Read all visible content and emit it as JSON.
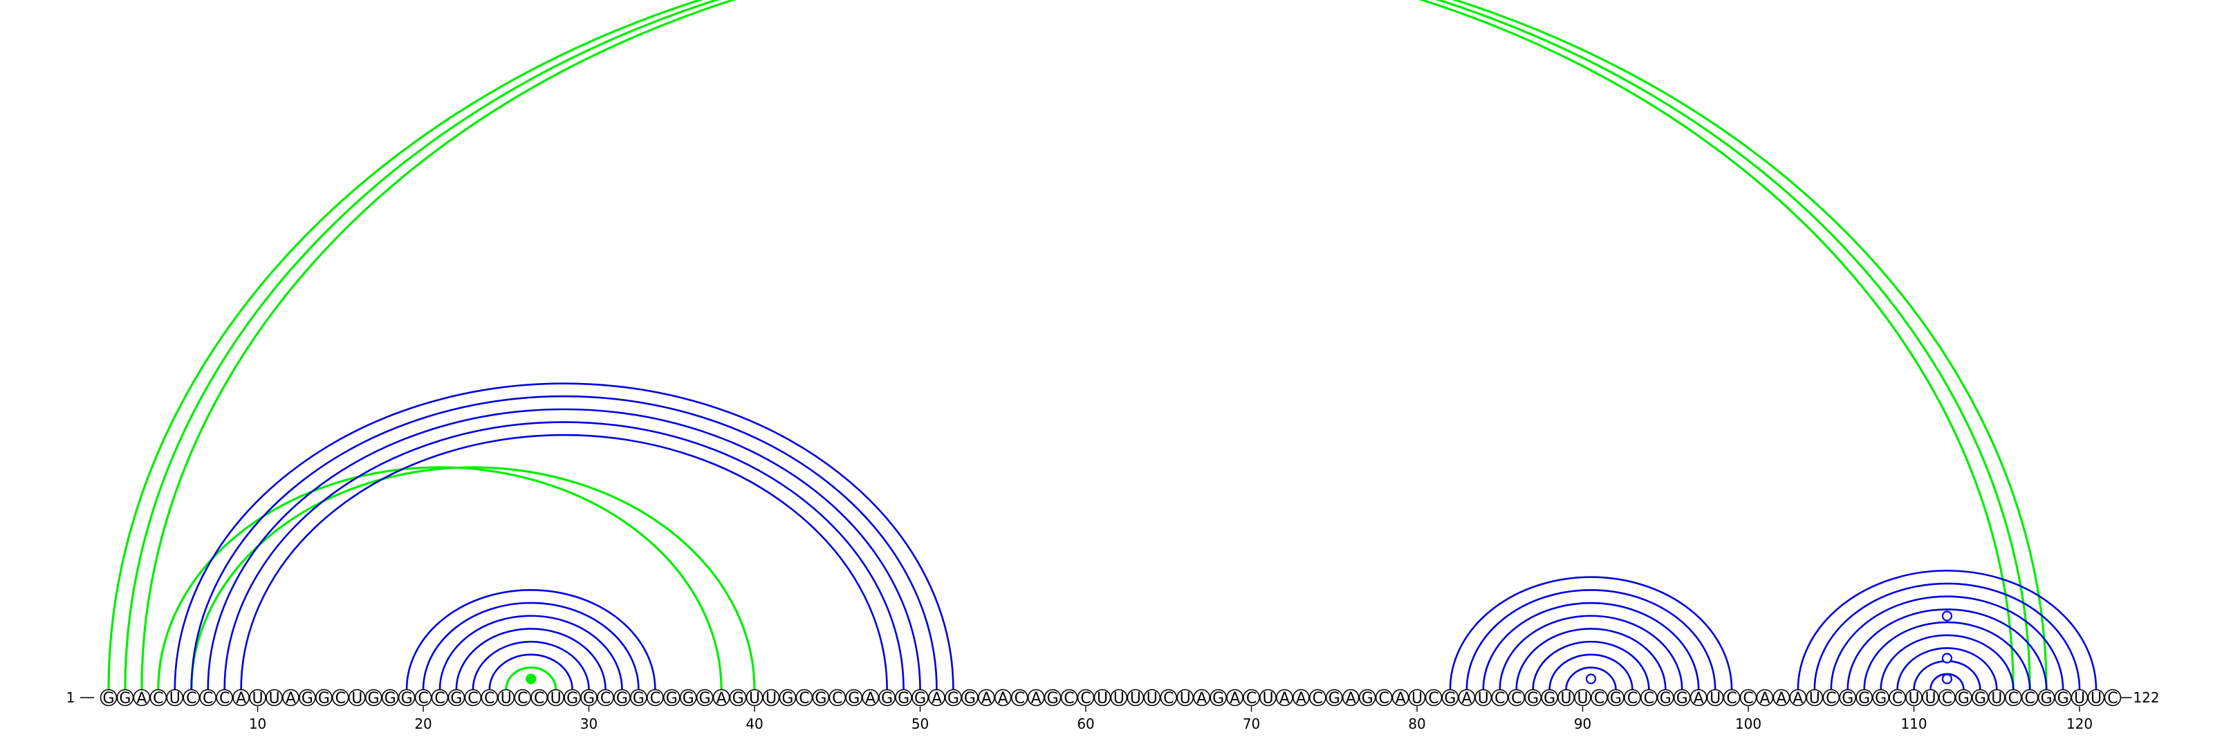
{
  "sequence": "GGACUCCCAUUAGGCUGGGCCGCCUCCUGGCGGCGGGAGUUGCGCGAGGGAGGAACAGCCUUUUCUAGACUAACGAGCAUCGAUCCGGUUCGCCGGAUCCAAAUCGGGCUUCGGUCCGGUUC",
  "start_label": "1",
  "end_label": "122",
  "ticks": [
    10,
    20,
    30,
    40,
    50,
    60,
    70,
    80,
    90,
    100,
    110,
    120
  ],
  "colors": {
    "primary_arc": "#0000dd",
    "secondary_arc": "#00ee00",
    "outline": "#000000"
  },
  "pairs": [
    {
      "i": 1,
      "j": 116,
      "color": "green"
    },
    {
      "i": 2,
      "j": 117,
      "color": "green"
    },
    {
      "i": 3,
      "j": 118,
      "color": "green"
    },
    {
      "i": 4,
      "j": 38,
      "color": "green"
    },
    {
      "i": 6,
      "j": 40,
      "color": "green"
    },
    {
      "i": 5,
      "j": 52,
      "color": "blue"
    },
    {
      "i": 6,
      "j": 51,
      "color": "blue"
    },
    {
      "i": 7,
      "j": 50,
      "color": "blue"
    },
    {
      "i": 8,
      "j": 49,
      "color": "blue"
    },
    {
      "i": 9,
      "j": 48,
      "color": "blue"
    },
    {
      "i": 19,
      "j": 34,
      "color": "blue"
    },
    {
      "i": 20,
      "j": 33,
      "color": "blue"
    },
    {
      "i": 21,
      "j": 32,
      "color": "blue"
    },
    {
      "i": 22,
      "j": 31,
      "color": "blue"
    },
    {
      "i": 23,
      "j": 30,
      "color": "blue"
    },
    {
      "i": 24,
      "j": 29,
      "color": "blue"
    },
    {
      "i": 25,
      "j": 28,
      "color": "green"
    },
    {
      "i": 82,
      "j": 99,
      "color": "blue"
    },
    {
      "i": 83,
      "j": 98,
      "color": "blue"
    },
    {
      "i": 84,
      "j": 97,
      "color": "blue"
    },
    {
      "i": 85,
      "j": 96,
      "color": "blue"
    },
    {
      "i": 86,
      "j": 95,
      "color": "blue"
    },
    {
      "i": 87,
      "j": 94,
      "color": "blue"
    },
    {
      "i": 88,
      "j": 93,
      "color": "blue"
    },
    {
      "i": 89,
      "j": 92,
      "color": "blue"
    },
    {
      "i": 103,
      "j": 121,
      "color": "blue"
    },
    {
      "i": 104,
      "j": 120,
      "color": "blue"
    },
    {
      "i": 105,
      "j": 119,
      "color": "blue"
    },
    {
      "i": 106,
      "j": 118,
      "color": "blue"
    },
    {
      "i": 107,
      "j": 117,
      "color": "blue"
    },
    {
      "i": 108,
      "j": 116,
      "color": "blue"
    },
    {
      "i": 109,
      "j": 115,
      "color": "blue"
    },
    {
      "i": 110,
      "j": 114,
      "color": "blue"
    },
    {
      "i": 111,
      "j": 113,
      "color": "blue"
    }
  ]
}
